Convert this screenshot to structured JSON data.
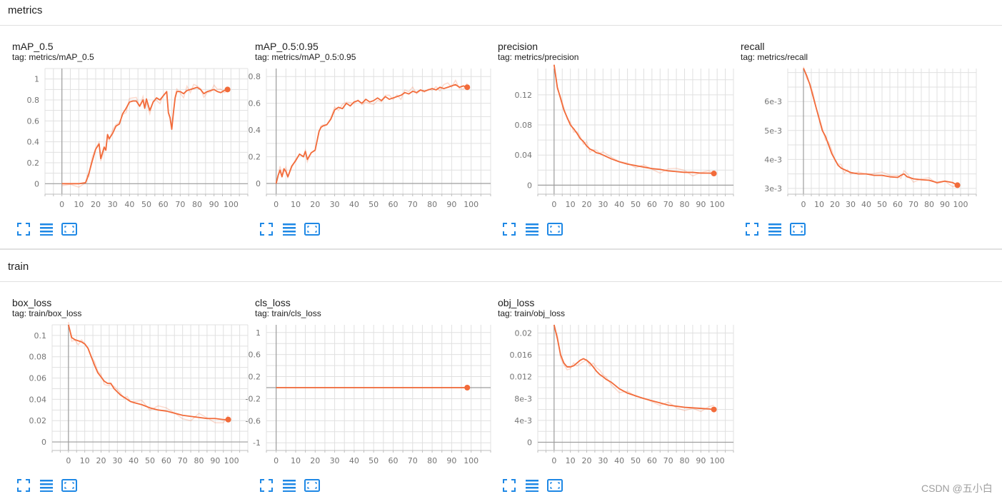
{
  "sections": [
    {
      "title": "metrics"
    },
    {
      "title": "train"
    }
  ],
  "toolbar": {
    "fullscreen_icon": "expand-icon",
    "log_scale_icon": "lines-icon",
    "fit_domain_icon": "fit-domain-icon",
    "icon_color": "#1e88e5"
  },
  "colors": {
    "smoothed": "#f26b3a",
    "raw": "#f26b3a",
    "grid": "#e0e0e0",
    "axis": "#9e9e9e"
  },
  "cards": [
    {
      "title": "mAP_0.5",
      "tag": "tag: metrics/mAP_0.5"
    },
    {
      "title": "mAP_0.5:0.95",
      "tag": "tag: metrics/mAP_0.5:0.95"
    },
    {
      "title": "precision",
      "tag": "tag: metrics/precision"
    },
    {
      "title": "recall",
      "tag": "tag: metrics/recall"
    },
    {
      "title": "box_loss",
      "tag": "tag: train/box_loss"
    },
    {
      "title": "cls_loss",
      "tag": "tag: train/cls_loss"
    },
    {
      "title": "obj_loss",
      "tag": "tag: train/obj_loss"
    }
  ],
  "chart_data": [
    {
      "type": "line",
      "title": "mAP_0.5",
      "xlim": [
        -10,
        110
      ],
      "ylim": [
        -0.1,
        1.1
      ],
      "xticks": [
        0,
        10,
        20,
        30,
        40,
        50,
        60,
        70,
        80,
        90,
        100
      ],
      "yticks": [
        0,
        0.2,
        0.4,
        0.6,
        0.8,
        1
      ],
      "ytick_labels": [
        "0",
        "0.2",
        "0.4",
        "0.6",
        "0.8",
        "1"
      ],
      "series": [
        {
          "x": [
            0,
            5,
            10,
            14,
            15,
            16,
            17,
            18,
            20,
            22,
            23,
            25,
            26,
            27,
            28,
            30,
            32,
            34,
            36,
            38,
            40,
            42,
            44,
            46,
            48,
            49,
            50,
            52,
            54,
            56,
            58,
            60,
            62,
            63,
            64,
            65,
            66,
            67,
            68,
            70,
            72,
            74,
            76,
            78,
            80,
            82,
            84,
            86,
            88,
            90,
            92,
            94,
            96,
            98
          ],
          "y": [
            0,
            0,
            0,
            0.01,
            0.05,
            0.1,
            0.16,
            0.22,
            0.33,
            0.38,
            0.24,
            0.35,
            0.32,
            0.47,
            0.43,
            0.48,
            0.55,
            0.57,
            0.67,
            0.72,
            0.78,
            0.79,
            0.79,
            0.74,
            0.8,
            0.72,
            0.81,
            0.7,
            0.78,
            0.82,
            0.8,
            0.84,
            0.88,
            0.68,
            0.63,
            0.52,
            0.68,
            0.82,
            0.88,
            0.88,
            0.86,
            0.89,
            0.9,
            0.91,
            0.92,
            0.9,
            0.86,
            0.88,
            0.89,
            0.9,
            0.88,
            0.87,
            0.89,
            0.9
          ]
        }
      ]
    },
    {
      "type": "line",
      "title": "mAP_0.5:0.95",
      "xlim": [
        -5,
        110
      ],
      "ylim": [
        -0.08,
        0.86
      ],
      "xticks": [
        0,
        10,
        20,
        30,
        40,
        50,
        60,
        70,
        80,
        90,
        100
      ],
      "yticks": [
        0,
        0.2,
        0.4,
        0.6,
        0.8
      ],
      "ytick_labels": [
        "0",
        "0.2",
        "0.4",
        "0.6",
        "0.8"
      ],
      "series": [
        {
          "x": [
            0,
            1,
            2,
            3,
            4,
            5,
            6,
            8,
            10,
            12,
            14,
            15,
            16,
            18,
            20,
            22,
            23,
            24,
            26,
            28,
            30,
            32,
            34,
            36,
            38,
            40,
            42,
            44,
            46,
            48,
            50,
            52,
            54,
            56,
            58,
            60,
            62,
            64,
            66,
            68,
            70,
            72,
            74,
            76,
            78,
            80,
            82,
            84,
            86,
            88,
            90,
            92,
            94,
            96,
            98
          ],
          "y": [
            0,
            0.06,
            0.1,
            0.05,
            0.11,
            0.09,
            0.05,
            0.13,
            0.17,
            0.22,
            0.2,
            0.24,
            0.18,
            0.23,
            0.25,
            0.39,
            0.42,
            0.43,
            0.44,
            0.48,
            0.55,
            0.57,
            0.56,
            0.6,
            0.58,
            0.61,
            0.62,
            0.6,
            0.63,
            0.61,
            0.62,
            0.64,
            0.62,
            0.65,
            0.63,
            0.64,
            0.65,
            0.66,
            0.68,
            0.67,
            0.69,
            0.68,
            0.7,
            0.69,
            0.7,
            0.71,
            0.7,
            0.72,
            0.71,
            0.72,
            0.73,
            0.74,
            0.72,
            0.73,
            0.72
          ]
        }
      ]
    },
    {
      "type": "line",
      "title": "precision",
      "xlim": [
        -10,
        110
      ],
      "ylim": [
        -0.012,
        0.155
      ],
      "xticks": [
        0,
        10,
        20,
        30,
        40,
        50,
        60,
        70,
        80,
        90,
        100
      ],
      "yticks": [
        0,
        0.04,
        0.08,
        0.12
      ],
      "ytick_labels": [
        "0",
        "0.04",
        "0.08",
        "0.12"
      ],
      "series": [
        {
          "x": [
            0,
            2,
            4,
            6,
            8,
            10,
            12,
            14,
            16,
            18,
            20,
            22,
            24,
            26,
            28,
            30,
            35,
            40,
            45,
            50,
            55,
            60,
            65,
            70,
            75,
            80,
            85,
            90,
            95,
            98
          ],
          "y": [
            0.16,
            0.13,
            0.115,
            0.1,
            0.09,
            0.08,
            0.075,
            0.069,
            0.062,
            0.058,
            0.052,
            0.048,
            0.046,
            0.043,
            0.042,
            0.04,
            0.035,
            0.031,
            0.028,
            0.026,
            0.024,
            0.022,
            0.021,
            0.019,
            0.018,
            0.017,
            0.017,
            0.016,
            0.016,
            0.0155
          ]
        }
      ]
    },
    {
      "type": "line",
      "title": "recall",
      "xlim": [
        -10,
        110
      ],
      "ylim": [
        0.0028,
        0.00714
      ],
      "xticks": [
        0,
        10,
        20,
        30,
        40,
        50,
        60,
        70,
        80,
        90,
        100
      ],
      "yticks": [
        0.003,
        0.004,
        0.005,
        0.006
      ],
      "ytick_labels": [
        "3e-3",
        "4e-3",
        "5e-3",
        "6e-3"
      ],
      "series": [
        {
          "x": [
            0,
            2,
            4,
            6,
            8,
            10,
            12,
            14,
            16,
            18,
            20,
            22,
            24,
            26,
            28,
            30,
            35,
            40,
            45,
            50,
            55,
            60,
            62,
            64,
            66,
            70,
            75,
            80,
            85,
            90,
            95,
            98
          ],
          "y": [
            0.00715,
            0.0069,
            0.0066,
            0.0062,
            0.0058,
            0.0054,
            0.005,
            0.0048,
            0.0045,
            0.0042,
            0.004,
            0.0038,
            0.0037,
            0.00365,
            0.0036,
            0.00355,
            0.0035,
            0.0035,
            0.00345,
            0.00345,
            0.0034,
            0.00338,
            0.00345,
            0.0035,
            0.0034,
            0.00333,
            0.0033,
            0.00328,
            0.0032,
            0.00325,
            0.0032,
            0.00311
          ]
        }
      ]
    },
    {
      "type": "line",
      "title": "box_loss",
      "xlim": [
        -10,
        110
      ],
      "ylim": [
        -0.008,
        0.11
      ],
      "xticks": [
        0,
        10,
        20,
        30,
        40,
        50,
        60,
        70,
        80,
        90,
        100
      ],
      "yticks": [
        0,
        0.02,
        0.04,
        0.06,
        0.08,
        0.1
      ],
      "ytick_labels": [
        "0",
        "0.02",
        "0.04",
        "0.06",
        "0.08",
        "0.1"
      ],
      "series": [
        {
          "x": [
            0,
            2,
            4,
            6,
            8,
            10,
            12,
            14,
            16,
            18,
            20,
            22,
            24,
            26,
            28,
            30,
            32,
            34,
            36,
            38,
            40,
            45,
            50,
            55,
            60,
            65,
            70,
            75,
            80,
            85,
            90,
            95,
            98
          ],
          "y": [
            0.11,
            0.098,
            0.096,
            0.095,
            0.094,
            0.092,
            0.088,
            0.08,
            0.072,
            0.065,
            0.061,
            0.057,
            0.055,
            0.055,
            0.05,
            0.047,
            0.044,
            0.042,
            0.04,
            0.038,
            0.037,
            0.035,
            0.032,
            0.03,
            0.029,
            0.027,
            0.025,
            0.024,
            0.023,
            0.022,
            0.022,
            0.021,
            0.021
          ]
        }
      ]
    },
    {
      "type": "line",
      "title": "cls_loss",
      "xlim": [
        -5,
        110
      ],
      "ylim": [
        -1.14,
        1.14
      ],
      "xticks": [
        0,
        10,
        20,
        30,
        40,
        50,
        60,
        70,
        80,
        90,
        100
      ],
      "yticks": [
        -1,
        -0.6,
        -0.2,
        0.2,
        0.6,
        1
      ],
      "ytick_labels": [
        "-1",
        "-0.6",
        "-0.2",
        "0.2",
        "0.6",
        "1"
      ],
      "series": [
        {
          "x": [
            0,
            98
          ],
          "y": [
            0,
            0
          ]
        }
      ]
    },
    {
      "type": "line",
      "title": "obj_loss",
      "xlim": [
        -10,
        110
      ],
      "ylim": [
        -0.0015,
        0.0215
      ],
      "xticks": [
        0,
        10,
        20,
        30,
        40,
        50,
        60,
        70,
        80,
        90,
        100
      ],
      "yticks": [
        0,
        0.004,
        0.008,
        0.012,
        0.016,
        0.02
      ],
      "ytick_labels": [
        "0",
        "4e-3",
        "8e-3",
        "0.012",
        "0.016",
        "0.02"
      ],
      "series": [
        {
          "x": [
            0,
            2,
            4,
            6,
            8,
            10,
            12,
            14,
            16,
            18,
            20,
            22,
            24,
            26,
            28,
            30,
            32,
            35,
            40,
            45,
            50,
            55,
            60,
            65,
            70,
            75,
            80,
            85,
            90,
            95,
            98
          ],
          "y": [
            0.0215,
            0.019,
            0.016,
            0.0145,
            0.0138,
            0.0138,
            0.014,
            0.0145,
            0.015,
            0.0153,
            0.015,
            0.0145,
            0.0138,
            0.013,
            0.0124,
            0.012,
            0.0115,
            0.011,
            0.0098,
            0.009,
            0.0085,
            0.008,
            0.0076,
            0.0072,
            0.0068,
            0.0066,
            0.0064,
            0.0063,
            0.0062,
            0.0061,
            0.006
          ]
        }
      ]
    }
  ],
  "watermark": "CSDN @五小白"
}
